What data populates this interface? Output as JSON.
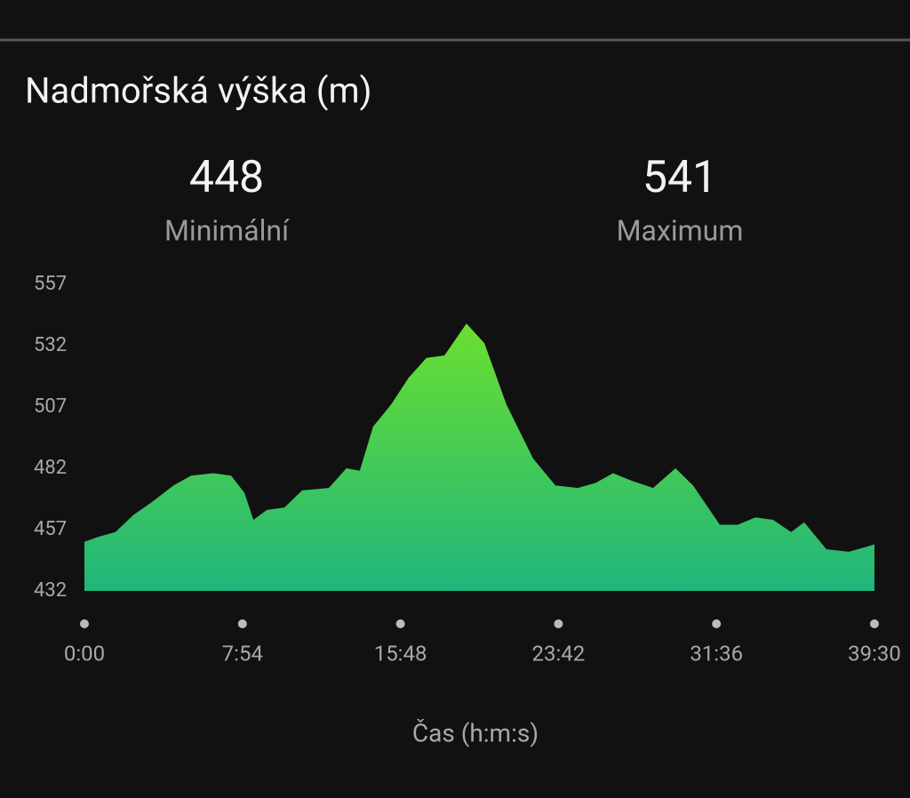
{
  "chart_data": {
    "type": "area",
    "title": "Nadmořská výška (m)",
    "stats": [
      {
        "value": 448,
        "label": "Minimální"
      },
      {
        "value": 541,
        "label": "Maximum"
      }
    ],
    "x_label": "Čas (h:m:s)",
    "x": [
      0,
      40,
      93,
      147,
      200,
      267,
      320,
      387,
      440,
      480,
      507,
      547,
      600,
      653,
      733,
      786,
      826,
      866,
      920,
      973,
      1026,
      1080,
      1146,
      1200,
      1266,
      1346,
      1413,
      1480,
      1533,
      1586,
      1640,
      1706,
      1773,
      1826,
      1906,
      1960,
      2013,
      2066,
      2120,
      2159,
      2226,
      2293,
      2346,
      2370
    ],
    "values": [
      452,
      454,
      456,
      463,
      468,
      475,
      479,
      480,
      479,
      472,
      461,
      465,
      466,
      473,
      474,
      482,
      481,
      499,
      508,
      519,
      527,
      528,
      541,
      533,
      508,
      486,
      475,
      474,
      476,
      480,
      477,
      474,
      482,
      475,
      459,
      459,
      462,
      461,
      456,
      460,
      449,
      448,
      450,
      451
    ],
    "xlim": [
      0,
      2370
    ],
    "xticks": [
      {
        "value": 0,
        "label": "0:00"
      },
      {
        "value": 474,
        "label": "7:54"
      },
      {
        "value": 948,
        "label": "15:48"
      },
      {
        "value": 1422,
        "label": "23:42"
      },
      {
        "value": 1896,
        "label": "31:36"
      },
      {
        "value": 2370,
        "label": "39:30"
      }
    ],
    "ylim": [
      432,
      557
    ],
    "yticks": [
      432,
      457,
      482,
      507,
      532,
      557
    ],
    "gradient": [
      "#6ae030",
      "#20b57c"
    ],
    "grid": false
  }
}
